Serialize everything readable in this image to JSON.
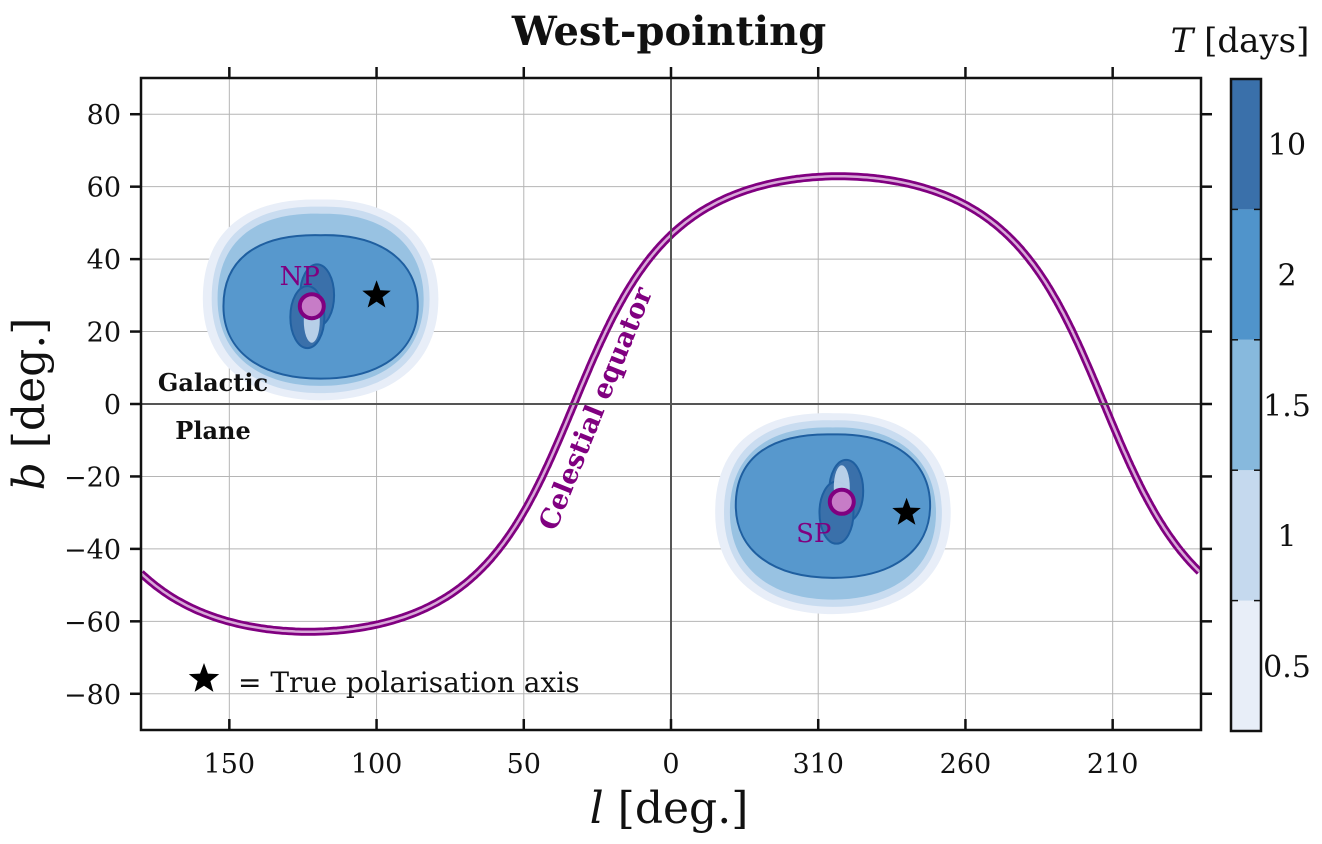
{
  "chart_data": {
    "type": "contour",
    "title": "West-pointing",
    "xlabel": "l [deg.]",
    "ylabel": "b [deg.]",
    "xtick_labels": [
      "150",
      "100",
      "50",
      "0",
      "310",
      "260",
      "210"
    ],
    "xticks_projected": [
      150,
      100,
      50,
      0,
      -50,
      -100,
      -150
    ],
    "xlim_projected": [
      180,
      -180
    ],
    "ylim": [
      -90,
      90
    ],
    "yticks": [
      80,
      60,
      40,
      20,
      0,
      -20,
      -40,
      -60,
      -80
    ],
    "ytick_labels": [
      "80",
      "60",
      "40",
      "20",
      "0",
      "−20",
      "−40",
      "−60",
      "−80"
    ],
    "grid": true,
    "colorbar": {
      "label": "T [days]",
      "levels": [
        "0.5",
        "1",
        "1.5",
        "2",
        "10"
      ],
      "colors": [
        "#e8eef8",
        "#c5d9ee",
        "#87b9dd",
        "#5094cb",
        "#3a70aa"
      ]
    },
    "regions": [
      {
        "label": "NP",
        "pole_l": 122,
        "pole_b": 27,
        "true_axis_l": 100,
        "true_axis_b": 30
      },
      {
        "label": "SP",
        "pole_l": 302,
        "pole_b": -27,
        "true_axis_l": 280,
        "true_axis_b": -30
      }
    ],
    "celestial_equator_label": "Celestial equator",
    "galactic_plane_label": [
      "Galactic",
      "Plane"
    ],
    "legend_text": "= True polarisation axis",
    "colors": {
      "equator": "#800080",
      "equator_inner": "#d8a8d8",
      "pole_fill": "#c77cc7",
      "contour_dark": "#1f5fa0"
    }
  }
}
